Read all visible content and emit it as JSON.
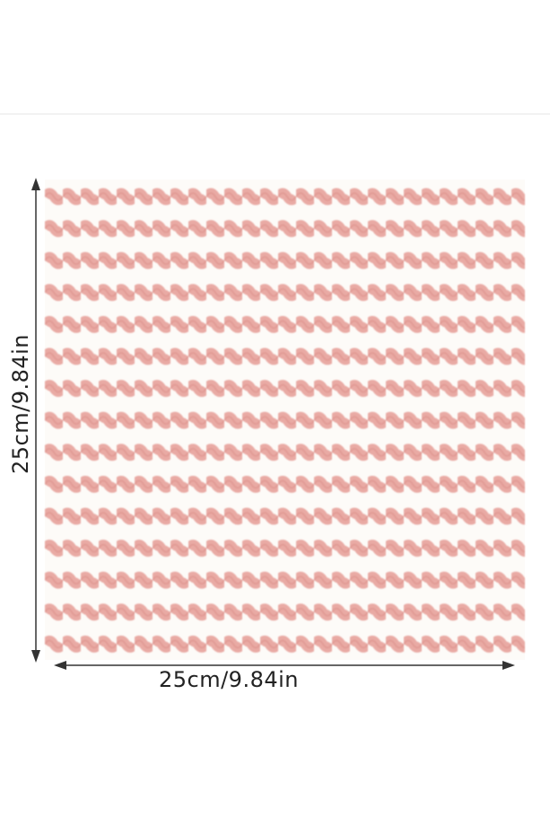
{
  "dimensions": {
    "height_label": "25cm/9.84in",
    "width_label": "25cm/9.84in"
  }
}
